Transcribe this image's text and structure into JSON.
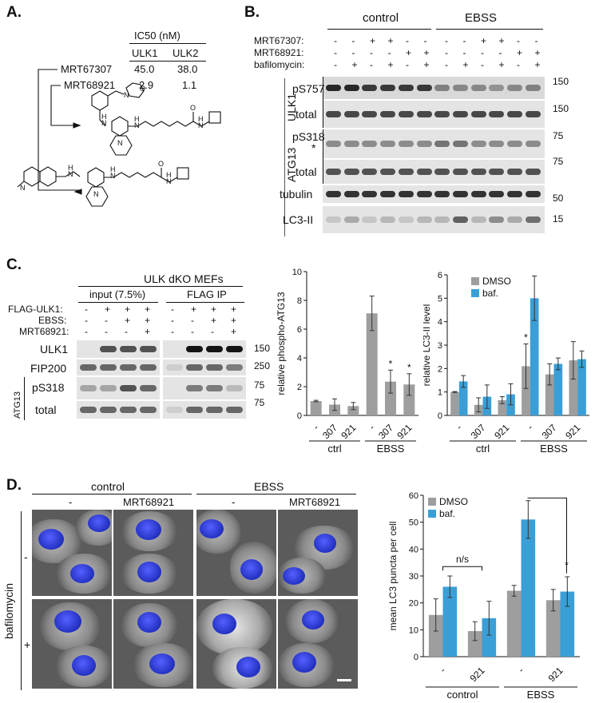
{
  "panelA": {
    "letter": "A.",
    "ic50_header": "IC50 (nM)",
    "col1": "ULK1",
    "col2": "ULK2",
    "rows": [
      {
        "name": "MRT67307",
        "ulk1": "45.0",
        "ulk2": "38.0"
      },
      {
        "name": "MRT68921",
        "ulk1": "2.9",
        "ulk2": "1.1"
      }
    ]
  },
  "panelB": {
    "letter": "B.",
    "group1": "control",
    "group2": "EBSS",
    "row_labels": [
      "MRT67307:",
      "MRT68921:",
      "bafilomycin:"
    ],
    "signs_mrt67307": [
      "-",
      "-",
      "+",
      "+",
      "-",
      "-",
      "-",
      "-",
      "+",
      "+",
      "-",
      "-"
    ],
    "signs_mrt68921": [
      "-",
      "-",
      "-",
      "-",
      "+",
      "+",
      "-",
      "-",
      "-",
      "-",
      "+",
      "+"
    ],
    "signs_baf": [
      "-",
      "+",
      "-",
      "+",
      "-",
      "+",
      "-",
      "+",
      "-",
      "+",
      "-",
      "+"
    ],
    "blots": {
      "ulk1_group": "ULK1",
      "atg13_group": "ATG13",
      "pS757": "pS757",
      "total1": "total",
      "pS318": "pS318",
      "star": "*",
      "total2": "total",
      "tubulin": "tubulin",
      "lc3": "LC3-II"
    },
    "mw": [
      "150",
      "150",
      "75",
      "75",
      "50",
      "15"
    ]
  },
  "panelC": {
    "letter": "C.",
    "title": "ULK dKO MEFs",
    "input": "input (7.5%)",
    "ip": "FLAG IP",
    "row_labels": [
      "FLAG-ULK1:",
      "EBSS:",
      "MRT68921:"
    ],
    "signs_flag": [
      "-",
      "+",
      "+",
      "+",
      "-",
      "+",
      "+",
      "+"
    ],
    "signs_ebss": [
      "-",
      "-",
      "+",
      "+",
      "-",
      "-",
      "+",
      "+"
    ],
    "signs_mrt": [
      "-",
      "-",
      "-",
      "+",
      "-",
      "-",
      "-",
      "+"
    ],
    "blots": {
      "ulk1": "ULK1",
      "fip200": "FIP200",
      "atg13": "ATG13",
      "pS318": "pS318",
      "total": "total"
    },
    "mw": [
      "150",
      "250",
      "75",
      "75"
    ]
  },
  "panelD": {
    "letter": "D.",
    "col_groups": [
      "control",
      "EBSS"
    ],
    "col_labels": [
      "-",
      "MRT68921",
      "-",
      "MRT68921"
    ],
    "row_title": "bafilomycin",
    "row_signs": [
      "-",
      "+"
    ]
  },
  "chart_data": [
    {
      "type": "bar",
      "title": "",
      "ylabel": "relative phospho-ATG13",
      "ylim": [
        0,
        10
      ],
      "yticks": [
        "0",
        "2",
        "4",
        "6",
        "8",
        "10"
      ],
      "categories": [
        "-",
        "307",
        "921",
        "-",
        "307",
        "921"
      ],
      "groups": [
        "ctrl",
        "EBSS"
      ],
      "values": [
        1.0,
        0.75,
        0.65,
        7.1,
        2.35,
        2.15
      ],
      "errors": [
        0.05,
        0.4,
        0.25,
        1.2,
        0.8,
        0.75
      ],
      "significance": [
        "",
        "",
        "",
        "",
        "*",
        "*"
      ]
    },
    {
      "type": "bar",
      "title": "",
      "ylabel": "relative LC3-II level",
      "ylim": [
        0,
        6
      ],
      "yticks": [
        "0",
        "1",
        "2",
        "3",
        "4",
        "5",
        "6"
      ],
      "categories": [
        "-",
        "307",
        "921",
        "-",
        "307",
        "921"
      ],
      "groups": [
        "ctrl",
        "EBSS"
      ],
      "legend": "top-left",
      "series": [
        {
          "name": "DMSO",
          "color": "#9e9e9e",
          "values": [
            1.0,
            0.45,
            0.65,
            2.1,
            1.75,
            2.35
          ],
          "errors": [
            0.02,
            0.3,
            0.15,
            0.95,
            0.45,
            0.8
          ]
        },
        {
          "name": "baf.",
          "color": "#3a9fd6",
          "values": [
            1.45,
            0.8,
            0.9,
            5.0,
            2.2,
            2.4
          ],
          "errors": [
            0.25,
            0.5,
            0.45,
            0.95,
            0.25,
            0.35
          ]
        }
      ],
      "significance": [
        "",
        "",
        "",
        "*",
        "",
        ""
      ]
    },
    {
      "type": "bar",
      "title": "",
      "ylabel": "mean LC3 puncta per cell",
      "ylim": [
        0,
        60
      ],
      "yticks": [
        "0",
        "10",
        "20",
        "30",
        "40",
        "50",
        "60"
      ],
      "categories": [
        "-",
        "921",
        "-",
        "921"
      ],
      "groups": [
        "control",
        "EBSS"
      ],
      "legend": "top-left",
      "series": [
        {
          "name": "DMSO",
          "color": "#9e9e9e",
          "values": [
            15.5,
            9.5,
            24.5,
            21.0
          ],
          "errors": [
            6.0,
            3.5,
            2.0,
            4.0
          ]
        },
        {
          "name": "baf.",
          "color": "#3a9fd6",
          "values": [
            26.0,
            14.3,
            51.0,
            24.2
          ],
          "errors": [
            4.0,
            6.3,
            7.0,
            5.5
          ]
        }
      ],
      "annotations": [
        "n/s",
        "*"
      ]
    }
  ]
}
